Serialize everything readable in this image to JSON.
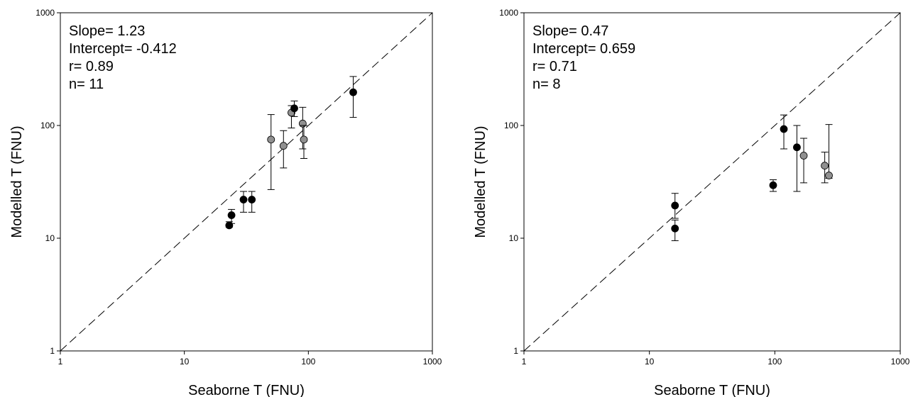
{
  "chart_data": [
    {
      "type": "scatter",
      "xlabel": "Seaborne T (FNU)",
      "ylabel": "Modelled T (FNU)",
      "xscale": "log",
      "yscale": "log",
      "xlim": [
        1,
        1000
      ],
      "ylim": [
        1,
        1000
      ],
      "x_ticks": [
        "1",
        "10",
        "100",
        "1000"
      ],
      "y_ticks": [
        "1",
        "10",
        "100",
        "1000"
      ],
      "reference_line": "1:1 dashed",
      "stats": [
        "Slope= 1.23",
        "Intercept= -0.412",
        "r= 0.89",
        "n= 11"
      ],
      "colors": {
        "black_points": "#000000",
        "grey_points": "#909090"
      },
      "points": [
        {
          "x": 23,
          "y": 13,
          "color": "black",
          "err_low": 12.5,
          "err_high": 14
        },
        {
          "x": 24,
          "y": 16,
          "color": "black",
          "err_low": 13.5,
          "err_high": 18
        },
        {
          "x": 30,
          "y": 22,
          "color": "black",
          "err_low": 17,
          "err_high": 26
        },
        {
          "x": 35,
          "y": 22,
          "color": "black",
          "err_low": 17,
          "err_high": 26
        },
        {
          "x": 50,
          "y": 75,
          "color": "grey",
          "err_low": 27,
          "err_high": 125
        },
        {
          "x": 63,
          "y": 66,
          "color": "grey",
          "err_low": 42,
          "err_high": 90
        },
        {
          "x": 73,
          "y": 130,
          "color": "grey",
          "err_low": 95,
          "err_high": 150
        },
        {
          "x": 77,
          "y": 142,
          "color": "black",
          "err_low": 120,
          "err_high": 165
        },
        {
          "x": 90,
          "y": 104,
          "color": "grey",
          "err_low": 62,
          "err_high": 145
        },
        {
          "x": 92,
          "y": 75,
          "color": "grey",
          "err_low": 51,
          "err_high": 100
        },
        {
          "x": 230,
          "y": 197,
          "color": "black",
          "err_low": 118,
          "err_high": 272
        }
      ]
    },
    {
      "type": "scatter",
      "xlabel": "Seaborne T (FNU)",
      "ylabel": "Modelled T (FNU)",
      "xscale": "log",
      "yscale": "log",
      "xlim": [
        1,
        1000
      ],
      "ylim": [
        1,
        1000
      ],
      "x_ticks": [
        "1",
        "10",
        "100",
        "1000"
      ],
      "y_ticks": [
        "1",
        "10",
        "100",
        "1000"
      ],
      "reference_line": "1:1 dashed",
      "stats": [
        "Slope= 0.47",
        "Intercept= 0.659",
        "r= 0.71",
        "n= 8"
      ],
      "colors": {
        "black_points": "#000000",
        "grey_points": "#909090"
      },
      "points": [
        {
          "x": 16,
          "y": 19.5,
          "color": "black",
          "err_low": 15,
          "err_high": 25
        },
        {
          "x": 16,
          "y": 12.2,
          "color": "black",
          "err_low": 9.5,
          "err_high": 14.5
        },
        {
          "x": 97,
          "y": 29.5,
          "color": "black",
          "err_low": 26,
          "err_high": 33
        },
        {
          "x": 118,
          "y": 93,
          "color": "black",
          "err_low": 62,
          "err_high": 124
        },
        {
          "x": 150,
          "y": 64,
          "color": "black",
          "err_low": 26,
          "err_high": 100
        },
        {
          "x": 170,
          "y": 54,
          "color": "grey",
          "err_low": 31,
          "err_high": 77
        },
        {
          "x": 250,
          "y": 44,
          "color": "grey",
          "err_low": 31,
          "err_high": 58
        },
        {
          "x": 270,
          "y": 36,
          "color": "grey",
          "err_low": 34,
          "err_high": 102
        }
      ]
    }
  ]
}
